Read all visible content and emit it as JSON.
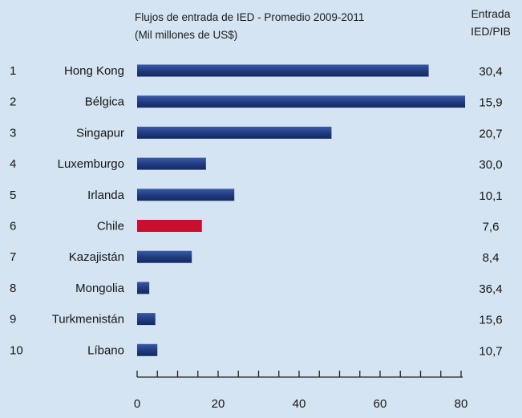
{
  "chart_data": {
    "type": "bar",
    "orientation": "horizontal",
    "title": "Flujos de entrada de IED - Promedio 2009-2011",
    "subtitle": "(Mil millones de US$)",
    "ratio_header": [
      "Entrada",
      "IED/PIB"
    ],
    "ranks": [
      "1",
      "2",
      "3",
      "4",
      "5",
      "6",
      "7",
      "8",
      "9",
      "10"
    ],
    "categories": [
      "Hong  Kong",
      "Bélgica",
      "Singapur",
      "Luxemburgo",
      "Irlanda",
      "Chile",
      "Kazajistán",
      "Mongolia",
      "Turkmenistán",
      "Líbano"
    ],
    "values": [
      72,
      81,
      48,
      17,
      24,
      16,
      13.5,
      3,
      4.5,
      5
    ],
    "ratios": [
      "30,4",
      "15,9",
      "20,7",
      "30,0",
      "10,1",
      "7,6",
      "8,4",
      "36,4",
      "15,6",
      "10,7"
    ],
    "highlight": "Chile",
    "xlim": [
      0,
      80
    ],
    "xticks": [
      "0",
      "20",
      "40",
      "60",
      "80"
    ],
    "colors": {
      "bar": "#1f3a7e",
      "highlight": "#c8102e",
      "background": "#d5e4f2"
    },
    "grid": false
  }
}
